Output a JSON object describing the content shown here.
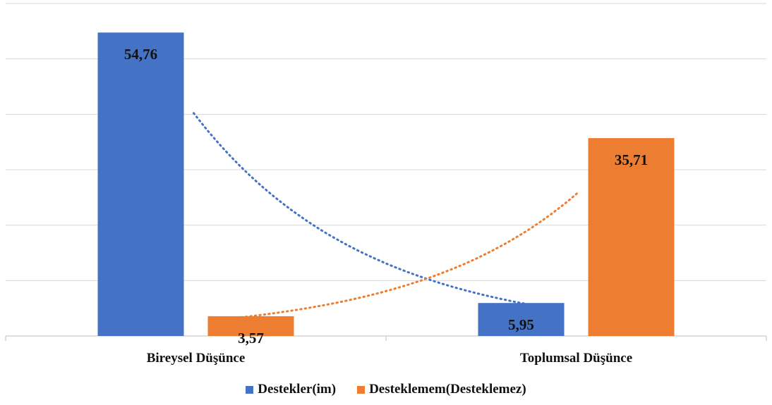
{
  "chart_data": {
    "type": "bar",
    "title": "",
    "xlabel": "",
    "ylabel": "",
    "categories": [
      "Bireysel Düşünce",
      "Toplumsal Düşünce"
    ],
    "series": [
      {
        "name": "Destekler(im)",
        "values": [
          54.76,
          5.95
        ],
        "labels": [
          "54,76",
          "5,95"
        ],
        "color": "#4472C4"
      },
      {
        "name": "Desteklemem(Desteklemez)",
        "values": [
          3.57,
          35.71
        ],
        "labels": [
          "3,57",
          "35,71"
        ],
        "color": "#ED7D31"
      }
    ],
    "trendlines": "exponential, dotted, one per series",
    "ylim": [
      0,
      60
    ],
    "y_gridline_step": 10,
    "y_tick_labels_shown": false,
    "grid": true,
    "legend": "bottom-center"
  }
}
